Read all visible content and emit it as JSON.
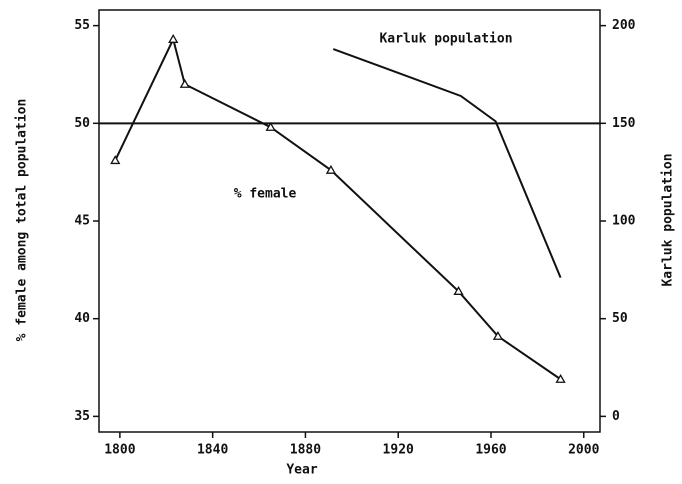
{
  "chart_data": {
    "type": "line",
    "x_label": "Year",
    "y_label": "% female among total population",
    "y2_label": "Karluk population",
    "xlim": [
      1791,
      2007
    ],
    "xticks": [
      1800,
      1840,
      1880,
      1920,
      1960,
      2000
    ],
    "ylim": [
      34.2,
      55.8
    ],
    "yticks": [
      35,
      40,
      45,
      50,
      55
    ],
    "y2lim": [
      -8,
      208
    ],
    "y2ticks": [
      0,
      50,
      100,
      150,
      200
    ],
    "reference_line": 50,
    "series": [
      {
        "name": "% female",
        "color": "#111111",
        "marker": "triangle",
        "x": [
          1798,
          1823,
          1828,
          1865,
          1891,
          1946,
          1963,
          1990
        ],
        "values": [
          48.1,
          54.3,
          52.0,
          49.8,
          47.6,
          41.4,
          39.1,
          36.9
        ]
      },
      {
        "name": "Karluk population",
        "color": "#111111",
        "axis": "y2",
        "x": [
          1892,
          1947,
          1962,
          1990
        ],
        "values": [
          188,
          164,
          151,
          71
        ]
      }
    ]
  }
}
